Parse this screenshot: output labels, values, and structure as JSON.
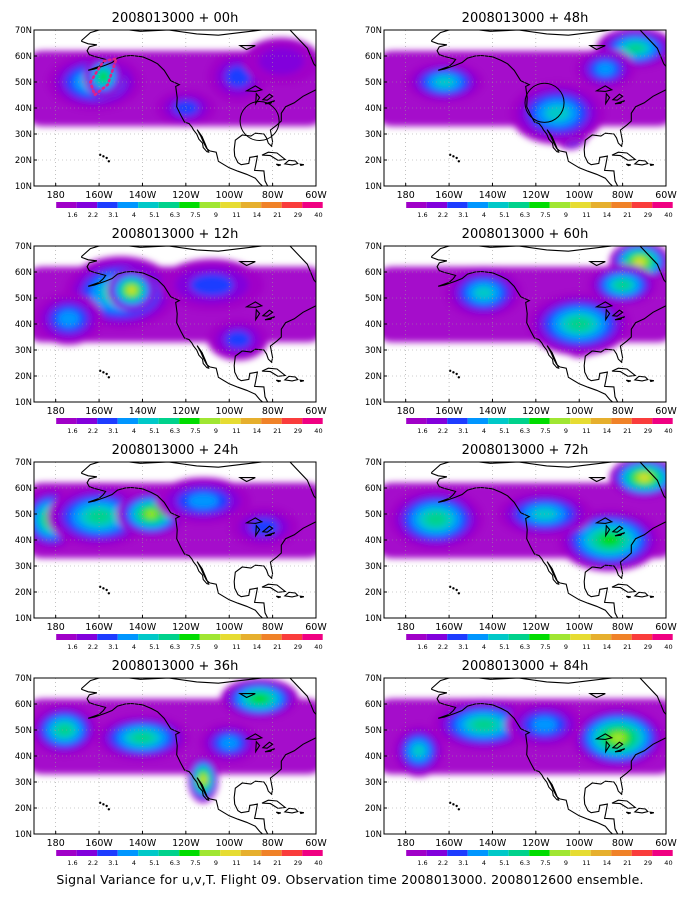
{
  "figure": {
    "caption": "Signal Variance for u,v,T. Flight 09. Observation time 2008013000. 2008012600 ensemble."
  },
  "chart_data": {
    "type": "heatmap",
    "colorbar": {
      "levels": [
        "1.6",
        "2.2",
        "3.1",
        "4",
        "5.1",
        "6.3",
        "7.5",
        "9",
        "11",
        "14",
        "21",
        "29",
        "40"
      ],
      "colors": [
        "#a000c8",
        "#8200dc",
        "#1e3cff",
        "#0096ff",
        "#00c8c8",
        "#00d28c",
        "#00dc00",
        "#a0e632",
        "#e6dc32",
        "#e6af2d",
        "#f08228",
        "#fa3c3c",
        "#f00082"
      ]
    },
    "x_ticks": [
      "180",
      "160W",
      "140W",
      "120W",
      "100W",
      "80W",
      "60W"
    ],
    "y_ticks": [
      "10N",
      "20N",
      "30N",
      "40N",
      "50N",
      "60N",
      "70N"
    ],
    "xlim": [
      -190,
      -60
    ],
    "ylim": [
      10,
      70
    ],
    "grid": true,
    "panels": [
      {
        "title": "2008013000 + 00h",
        "markers": [
          {
            "type": "dotted-polygon",
            "lonlat": [
              [
                -164,
                50
              ],
              [
                -158,
                58
              ],
              [
                -152,
                59
              ],
              [
                -156,
                49
              ],
              [
                -162,
                45
              ]
            ]
          },
          {
            "type": "circle",
            "center": [
              -86,
              35
            ],
            "radius_deg": 9
          }
        ],
        "blobs": [
          {
            "lon": -162,
            "lat": 50,
            "rx": 22,
            "ry": 11,
            "v": 4
          },
          {
            "lon": -158,
            "lat": 52,
            "rx": 9,
            "ry": 8,
            "v": 6
          },
          {
            "lon": -120,
            "lat": 40,
            "rx": 14,
            "ry": 7,
            "v": 2
          },
          {
            "lon": -96,
            "lat": 52,
            "rx": 14,
            "ry": 10,
            "v": 2
          },
          {
            "lon": -76,
            "lat": 58,
            "rx": 18,
            "ry": 9,
            "v": 1
          }
        ]
      },
      {
        "title": "2008013000 + 12h",
        "markers": [],
        "blobs": [
          {
            "lon": -150,
            "lat": 52,
            "rx": 26,
            "ry": 14,
            "v": 5
          },
          {
            "lon": -145,
            "lat": 53,
            "rx": 11,
            "ry": 8,
            "v": 8
          },
          {
            "lon": -108,
            "lat": 55,
            "rx": 24,
            "ry": 10,
            "v": 2
          },
          {
            "lon": -174,
            "lat": 42,
            "rx": 16,
            "ry": 10,
            "v": 3
          },
          {
            "lon": -96,
            "lat": 34,
            "rx": 14,
            "ry": 8,
            "v": 2
          }
        ]
      },
      {
        "title": "2008013000 + 24h",
        "markers": [],
        "blobs": [
          {
            "lon": -182,
            "lat": 48,
            "rx": 14,
            "ry": 12,
            "v": 6
          },
          {
            "lon": -160,
            "lat": 49,
            "rx": 24,
            "ry": 12,
            "v": 5
          },
          {
            "lon": -136,
            "lat": 50,
            "rx": 16,
            "ry": 9,
            "v": 7
          },
          {
            "lon": -112,
            "lat": 55,
            "rx": 22,
            "ry": 9,
            "v": 3
          },
          {
            "lon": -84,
            "lat": 45,
            "rx": 16,
            "ry": 8,
            "v": 2
          }
        ]
      },
      {
        "title": "2008013000 + 36h",
        "markers": [],
        "blobs": [
          {
            "lon": -176,
            "lat": 50,
            "rx": 16,
            "ry": 10,
            "v": 5
          },
          {
            "lon": -140,
            "lat": 47,
            "rx": 22,
            "ry": 9,
            "v": 5
          },
          {
            "lon": -112,
            "lat": 31,
            "rx": 7,
            "ry": 9,
            "v": 8
          },
          {
            "lon": -86,
            "lat": 62,
            "rx": 18,
            "ry": 8,
            "v": 6
          },
          {
            "lon": -100,
            "lat": 45,
            "rx": 14,
            "ry": 8,
            "v": 3
          }
        ]
      },
      {
        "title": "2008013000 + 48h",
        "markers": [
          {
            "type": "circle",
            "center": [
              -116,
              42
            ],
            "radius_deg": 9
          }
        ],
        "blobs": [
          {
            "lon": -162,
            "lat": 50,
            "rx": 18,
            "ry": 8,
            "v": 4
          },
          {
            "lon": -104,
            "lat": 32,
            "rx": 9,
            "ry": 8,
            "v": 8
          },
          {
            "lon": -110,
            "lat": 38,
            "rx": 22,
            "ry": 12,
            "v": 4
          },
          {
            "lon": -74,
            "lat": 63,
            "rx": 18,
            "ry": 8,
            "v": 5
          },
          {
            "lon": -88,
            "lat": 55,
            "rx": 14,
            "ry": 8,
            "v": 3
          }
        ]
      },
      {
        "title": "2008013000 + 60h",
        "markers": [],
        "blobs": [
          {
            "lon": -100,
            "lat": 35,
            "rx": 9,
            "ry": 8,
            "v": 9
          },
          {
            "lon": -100,
            "lat": 40,
            "rx": 24,
            "ry": 12,
            "v": 5
          },
          {
            "lon": -144,
            "lat": 52,
            "rx": 18,
            "ry": 10,
            "v": 4
          },
          {
            "lon": -72,
            "lat": 64,
            "rx": 14,
            "ry": 8,
            "v": 8
          },
          {
            "lon": -80,
            "lat": 55,
            "rx": 16,
            "ry": 8,
            "v": 5
          }
        ]
      },
      {
        "title": "2008013000 + 72h",
        "markers": [],
        "blobs": [
          {
            "lon": -86,
            "lat": 37,
            "rx": 9,
            "ry": 8,
            "v": 9
          },
          {
            "lon": -86,
            "lat": 40,
            "rx": 24,
            "ry": 12,
            "v": 6
          },
          {
            "lon": -166,
            "lat": 48,
            "rx": 22,
            "ry": 12,
            "v": 5
          },
          {
            "lon": -116,
            "lat": 50,
            "rx": 22,
            "ry": 9,
            "v": 4
          },
          {
            "lon": -70,
            "lat": 64,
            "rx": 16,
            "ry": 8,
            "v": 8
          }
        ]
      },
      {
        "title": "2008013000 + 84h",
        "markers": [],
        "blobs": [
          {
            "lon": -82,
            "lat": 45,
            "rx": 10,
            "ry": 8,
            "v": 10
          },
          {
            "lon": -82,
            "lat": 47,
            "rx": 22,
            "ry": 12,
            "v": 7
          },
          {
            "lon": -144,
            "lat": 52,
            "rx": 24,
            "ry": 10,
            "v": 5
          },
          {
            "lon": -174,
            "lat": 42,
            "rx": 12,
            "ry": 10,
            "v": 4
          },
          {
            "lon": -116,
            "lat": 52,
            "rx": 18,
            "ry": 9,
            "v": 3
          }
        ]
      }
    ]
  }
}
